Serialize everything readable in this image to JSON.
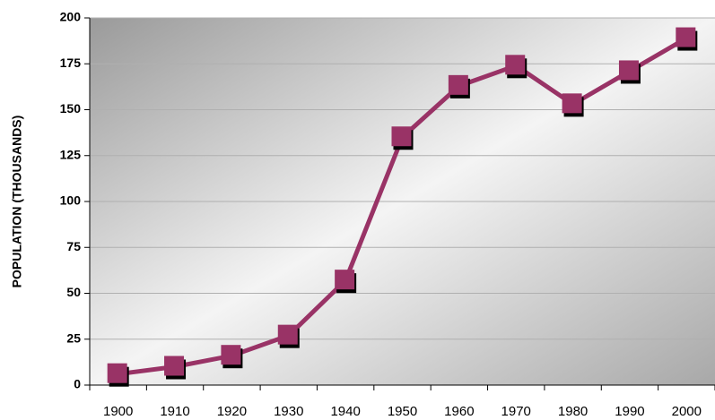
{
  "chart_data": {
    "type": "line",
    "y_label": "POPULATION (THOUSANDS)",
    "categories": [
      "1900",
      "1910",
      "1920",
      "1930",
      "1940",
      "1950",
      "1960",
      "1970",
      "1980",
      "1990",
      "2000"
    ],
    "series": [
      {
        "name": "Population",
        "color": "#993366",
        "values": [
          6,
          10,
          16,
          27,
          57,
          135,
          163,
          174,
          153,
          171,
          189
        ]
      }
    ],
    "ylim": [
      0,
      200
    ],
    "yticks": [
      0,
      25,
      50,
      75,
      100,
      125,
      150,
      175,
      200
    ],
    "grid": true
  }
}
